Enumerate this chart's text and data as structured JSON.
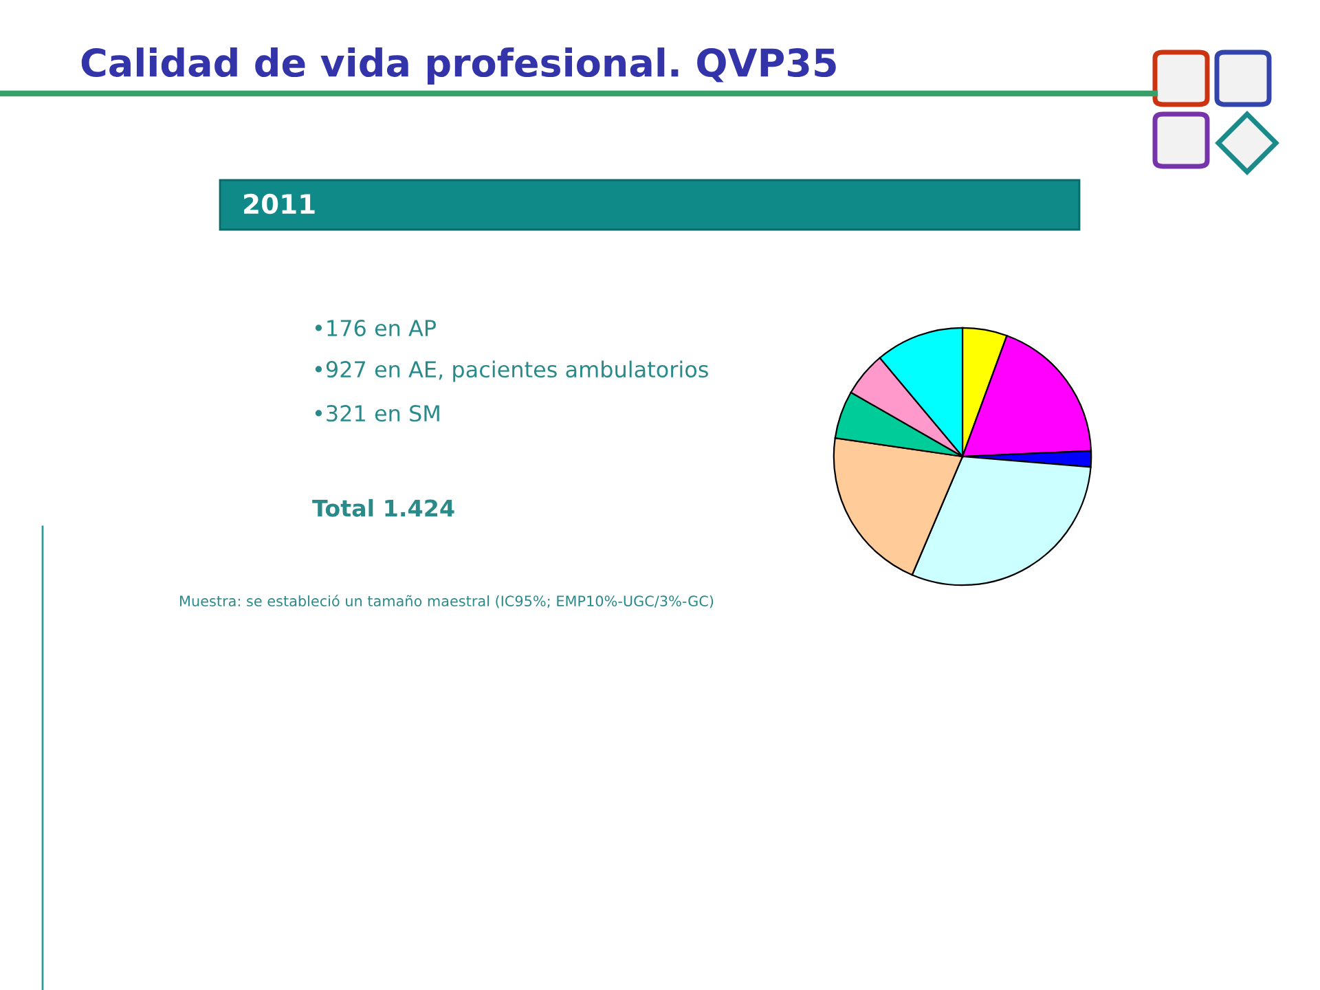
{
  "chart_data": {
    "type": "pie",
    "title": "Calidad de vida profesional. QVP35",
    "subtitle": "2011",
    "categories": [
      null,
      null,
      null,
      null,
      null,
      null,
      null,
      null
    ],
    "values": [
      5.6,
      18.7,
      2.0,
      30.1,
      20.9,
      6.0,
      5.6,
      11.1
    ],
    "colors": [
      "#ffff00",
      "#ff00ff",
      "#0000ff",
      "#ccffff",
      "#ffcc99",
      "#00cc99",
      "#ff99cc",
      "#00ffff"
    ],
    "annotations": [
      "•176 en AP",
      "•927 en AE, pacientes ambulatorios",
      "•321 en SM",
      "Total 1.424",
      "Muestra: se estableció un tamaño maestral (IC95%; EMP10%-UGC/3%-GC)"
    ]
  }
}
